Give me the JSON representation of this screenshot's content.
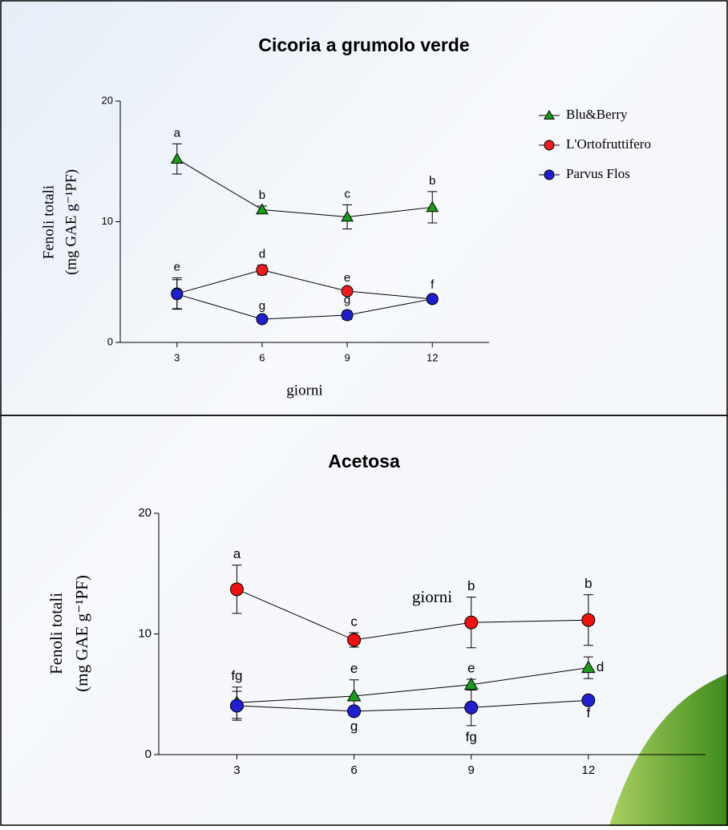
{
  "chart_data": [
    {
      "type": "line",
      "title": "Cicoria a grumolo verde",
      "xlabel": "giorni",
      "ylabel": [
        "Fenoli totali",
        "(mg GAE g⁻¹PF)"
      ],
      "x": [
        3,
        6,
        9,
        12
      ],
      "xlim": [
        1,
        14
      ],
      "xticks": [
        3,
        6,
        9,
        12
      ],
      "ylim": [
        0,
        20
      ],
      "yticks": [
        0,
        10,
        20
      ],
      "legend": "right",
      "series": [
        {
          "name": "Blu&Berry",
          "color": "#1a9c1a",
          "marker": "triangle",
          "values": [
            15.2,
            11.0,
            10.4,
            11.2
          ],
          "errors": [
            1.25,
            0.3,
            1.0,
            1.3
          ],
          "letters": [
            "a",
            "b",
            "c",
            "b"
          ]
        },
        {
          "name": "L'Ortofruttifero",
          "color": "#ee1c1c",
          "marker": "circle",
          "values": [
            4.05,
            6.0,
            4.25,
            3.6
          ],
          "errors": [
            1.3,
            0.4,
            0.2,
            0.3
          ],
          "letters": [
            "e",
            "d",
            "e",
            "f"
          ]
        },
        {
          "name": "Parvus Flos",
          "color": "#1f1fd0",
          "marker": "circle",
          "values": [
            4.0,
            1.93,
            2.26,
            3.6
          ],
          "errors": [
            1.2,
            0.2,
            0.35,
            0.2
          ],
          "letters": [
            null,
            "g",
            "g",
            null
          ]
        }
      ]
    },
    {
      "type": "line",
      "title": "Acetosa",
      "xlabel": "giorni",
      "ylabel": [
        "Fenoli totali",
        "(mg GAE g⁻¹PF)"
      ],
      "x": [
        3,
        6,
        9,
        12
      ],
      "xlim": [
        1,
        15
      ],
      "xticks": [
        3,
        6,
        9,
        12
      ],
      "ylim": [
        0,
        20
      ],
      "yticks": [
        0,
        10,
        20
      ],
      "series": [
        {
          "color": "#f01010",
          "marker": "circle",
          "values": [
            13.7,
            9.5,
            10.95,
            11.15
          ],
          "errors": [
            2.0,
            0.6,
            2.1,
            2.1
          ],
          "letters": [
            "a",
            "c",
            "b",
            "b"
          ]
        },
        {
          "color": "#1a9c1a",
          "marker": "triangle",
          "values": [
            4.3,
            4.85,
            5.8,
            7.2
          ],
          "errors": [
            1.3,
            1.35,
            0.45,
            0.9
          ],
          "letters": [
            "fg",
            "e",
            "e",
            "d"
          ]
        },
        {
          "color": "#1f1fd0",
          "marker": "circle",
          "values": [
            4.05,
            3.6,
            3.9,
            4.5
          ],
          "errors": [
            1.2,
            0.3,
            1.5,
            0.1
          ],
          "letters": [
            null,
            "g",
            "fg",
            "f"
          ]
        }
      ]
    }
  ]
}
